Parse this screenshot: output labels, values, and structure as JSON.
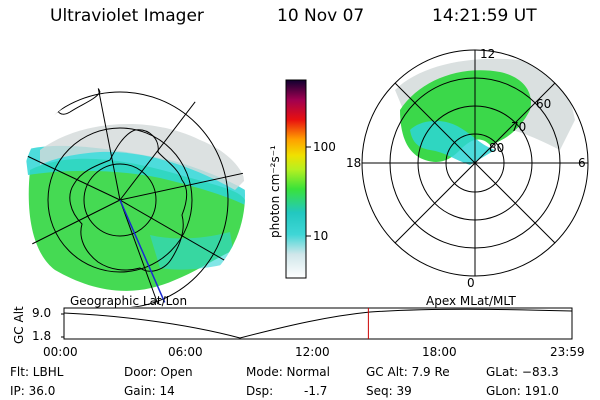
{
  "header": {
    "instrument": "Ultraviolet Imager",
    "date": "10 Nov 07",
    "time": "14:21:59 UT"
  },
  "colorbar": {
    "unit_label": "photon cm⁻²s⁻¹",
    "ticks": [
      "100",
      "10"
    ],
    "scale": "log"
  },
  "left_panel": {
    "caption": "Geographic Lat/Lon"
  },
  "right_panel": {
    "caption": "Apex MLat/MLT",
    "hour_labels": [
      "12",
      "18",
      "6",
      "0"
    ],
    "lat_labels": [
      "60",
      "70",
      "80"
    ]
  },
  "timeline": {
    "y_axis_label": "GC Alt",
    "y_ticks": [
      "9.0",
      "1.8"
    ],
    "x_ticks": [
      "00:00",
      "06:00",
      "12:00",
      "18:00",
      "23:59"
    ],
    "current_time_hours": 14.37,
    "marker_color": "#cc0000"
  },
  "info": {
    "filter": "Flt: LBHL",
    "ip": "IP: 36.0",
    "door": "Door: Open",
    "gain": "Gain: 14",
    "mode": "Mode: Normal",
    "dsp_label": "Dsp:",
    "dsp_value": "-1.7",
    "gc_alt": "GC Alt: 7.9 Re",
    "seq": "Seq: 39",
    "glat": "GLat: −83.3",
    "glon": "GLon: 191.0"
  },
  "colors": {
    "aurora_green": "#33d633",
    "aurora_cyan": "#2ed6d6",
    "noise_gray": "#d0d6d6"
  }
}
